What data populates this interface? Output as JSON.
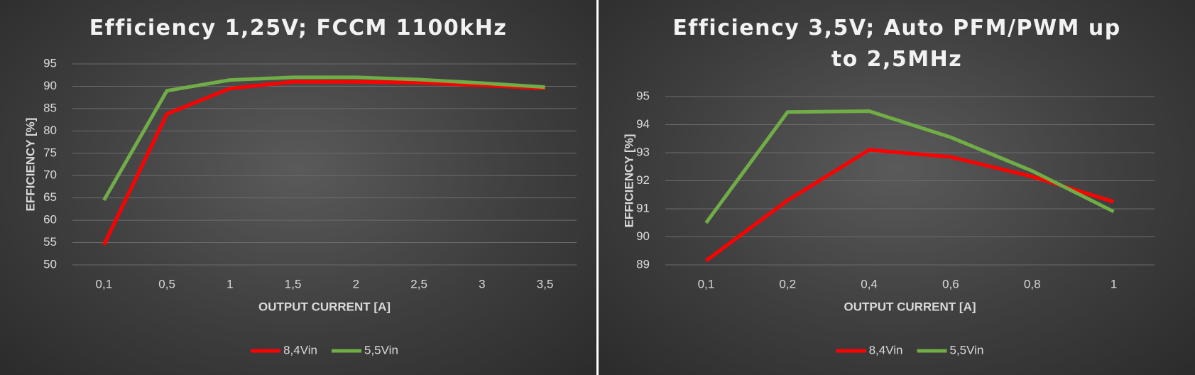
{
  "chart_data": [
    {
      "type": "line",
      "title": "Efficiency 1,25V; FCCM 1100kHz",
      "x_label": "OUTPUT CURRENT [A]",
      "y_label": "EFFICIENCY [%]",
      "categories": [
        "0,1",
        "0,5",
        "1",
        "1,5",
        "2",
        "2,5",
        "3",
        "3,5"
      ],
      "series": [
        {
          "name": "8,4Vin",
          "color": "#ff0000",
          "values": [
            54.5,
            83.8,
            89.5,
            91,
            91,
            90.8,
            90.2,
            89.5
          ]
        },
        {
          "name": "5,5Vin",
          "color": "#70ad47",
          "values": [
            64.5,
            89,
            91.4,
            92,
            92,
            91.5,
            90.7,
            89.8
          ]
        }
      ],
      "ylim": [
        50,
        95
      ],
      "yticks": [
        50,
        55,
        60,
        65,
        70,
        75,
        80,
        85,
        90,
        95
      ],
      "grid": true,
      "legend": "bottom"
    },
    {
      "type": "line",
      "title": "Efficiency 3,5V; Auto PFM/PWM up to 2,5MHz",
      "x_label": "OUTPUT CURRENT [A]",
      "y_label": "EFFICIENCY [%]",
      "categories": [
        "0,1",
        "0,2",
        "0,4",
        "0,6",
        "0,8",
        "1"
      ],
      "series": [
        {
          "name": "8,4Vin",
          "color": "#ff0000",
          "values": [
            89.15,
            91.3,
            93.1,
            92.85,
            92.15,
            91.25
          ]
        },
        {
          "name": "5,5Vin",
          "color": "#70ad47",
          "values": [
            90.5,
            94.45,
            94.48,
            93.55,
            92.35,
            90.9
          ]
        }
      ],
      "ylim": [
        89,
        95
      ],
      "yticks": [
        89,
        90,
        91,
        92,
        93,
        94,
        95
      ],
      "grid": true,
      "legend": "bottom"
    }
  ]
}
